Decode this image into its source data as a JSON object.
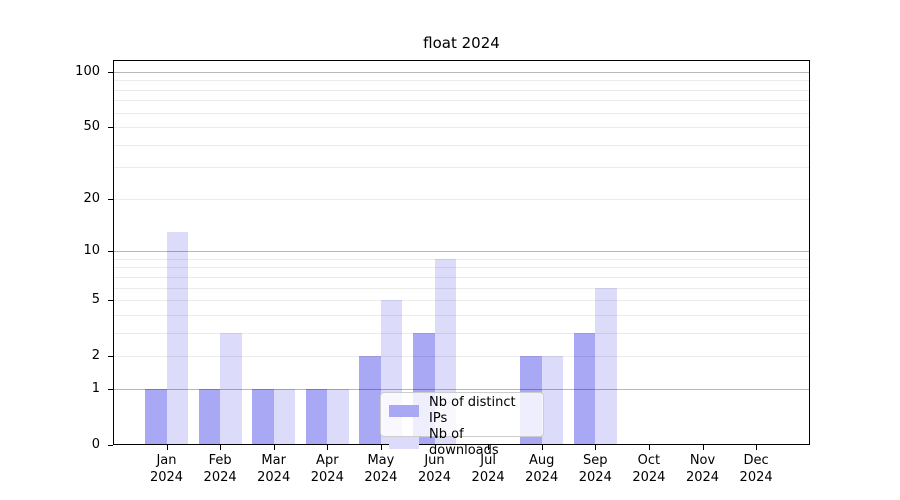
{
  "chart_data": {
    "type": "bar",
    "title": "float 2024",
    "categories": [
      "Jan 2024",
      "Feb 2024",
      "Mar 2024",
      "Apr 2024",
      "May 2024",
      "Jun 2024",
      "Jul 2024",
      "Aug 2024",
      "Sep 2024",
      "Oct 2024",
      "Nov 2024",
      "Dec 2024"
    ],
    "series": [
      {
        "name": "Nb of distinct IPs",
        "color": "#a8a8f5",
        "values": [
          1,
          1,
          1,
          1,
          2,
          3,
          0,
          2,
          3,
          0,
          0,
          0
        ]
      },
      {
        "name": "Nb of downloads",
        "color": "#dcdcfa",
        "values": [
          13,
          3,
          1,
          1,
          5,
          9,
          0,
          2,
          6,
          0,
          0,
          0
        ]
      }
    ],
    "xlabel": "",
    "ylabel": "",
    "y_ticks": [
      0,
      1,
      2,
      5,
      10,
      20,
      50,
      100
    ],
    "ylim": [
      0,
      113
    ],
    "y_scale": "log1p (position proportional to log10(value+1))",
    "grid": {
      "major_values": [
        1,
        10,
        100
      ],
      "minor_values": [
        2,
        3,
        4,
        5,
        6,
        7,
        8,
        9,
        20,
        30,
        40,
        50,
        60,
        70,
        80,
        90
      ]
    },
    "legend_position": "inside plot, lower center",
    "bar_style": "grouped pairs, no edge stroke"
  }
}
